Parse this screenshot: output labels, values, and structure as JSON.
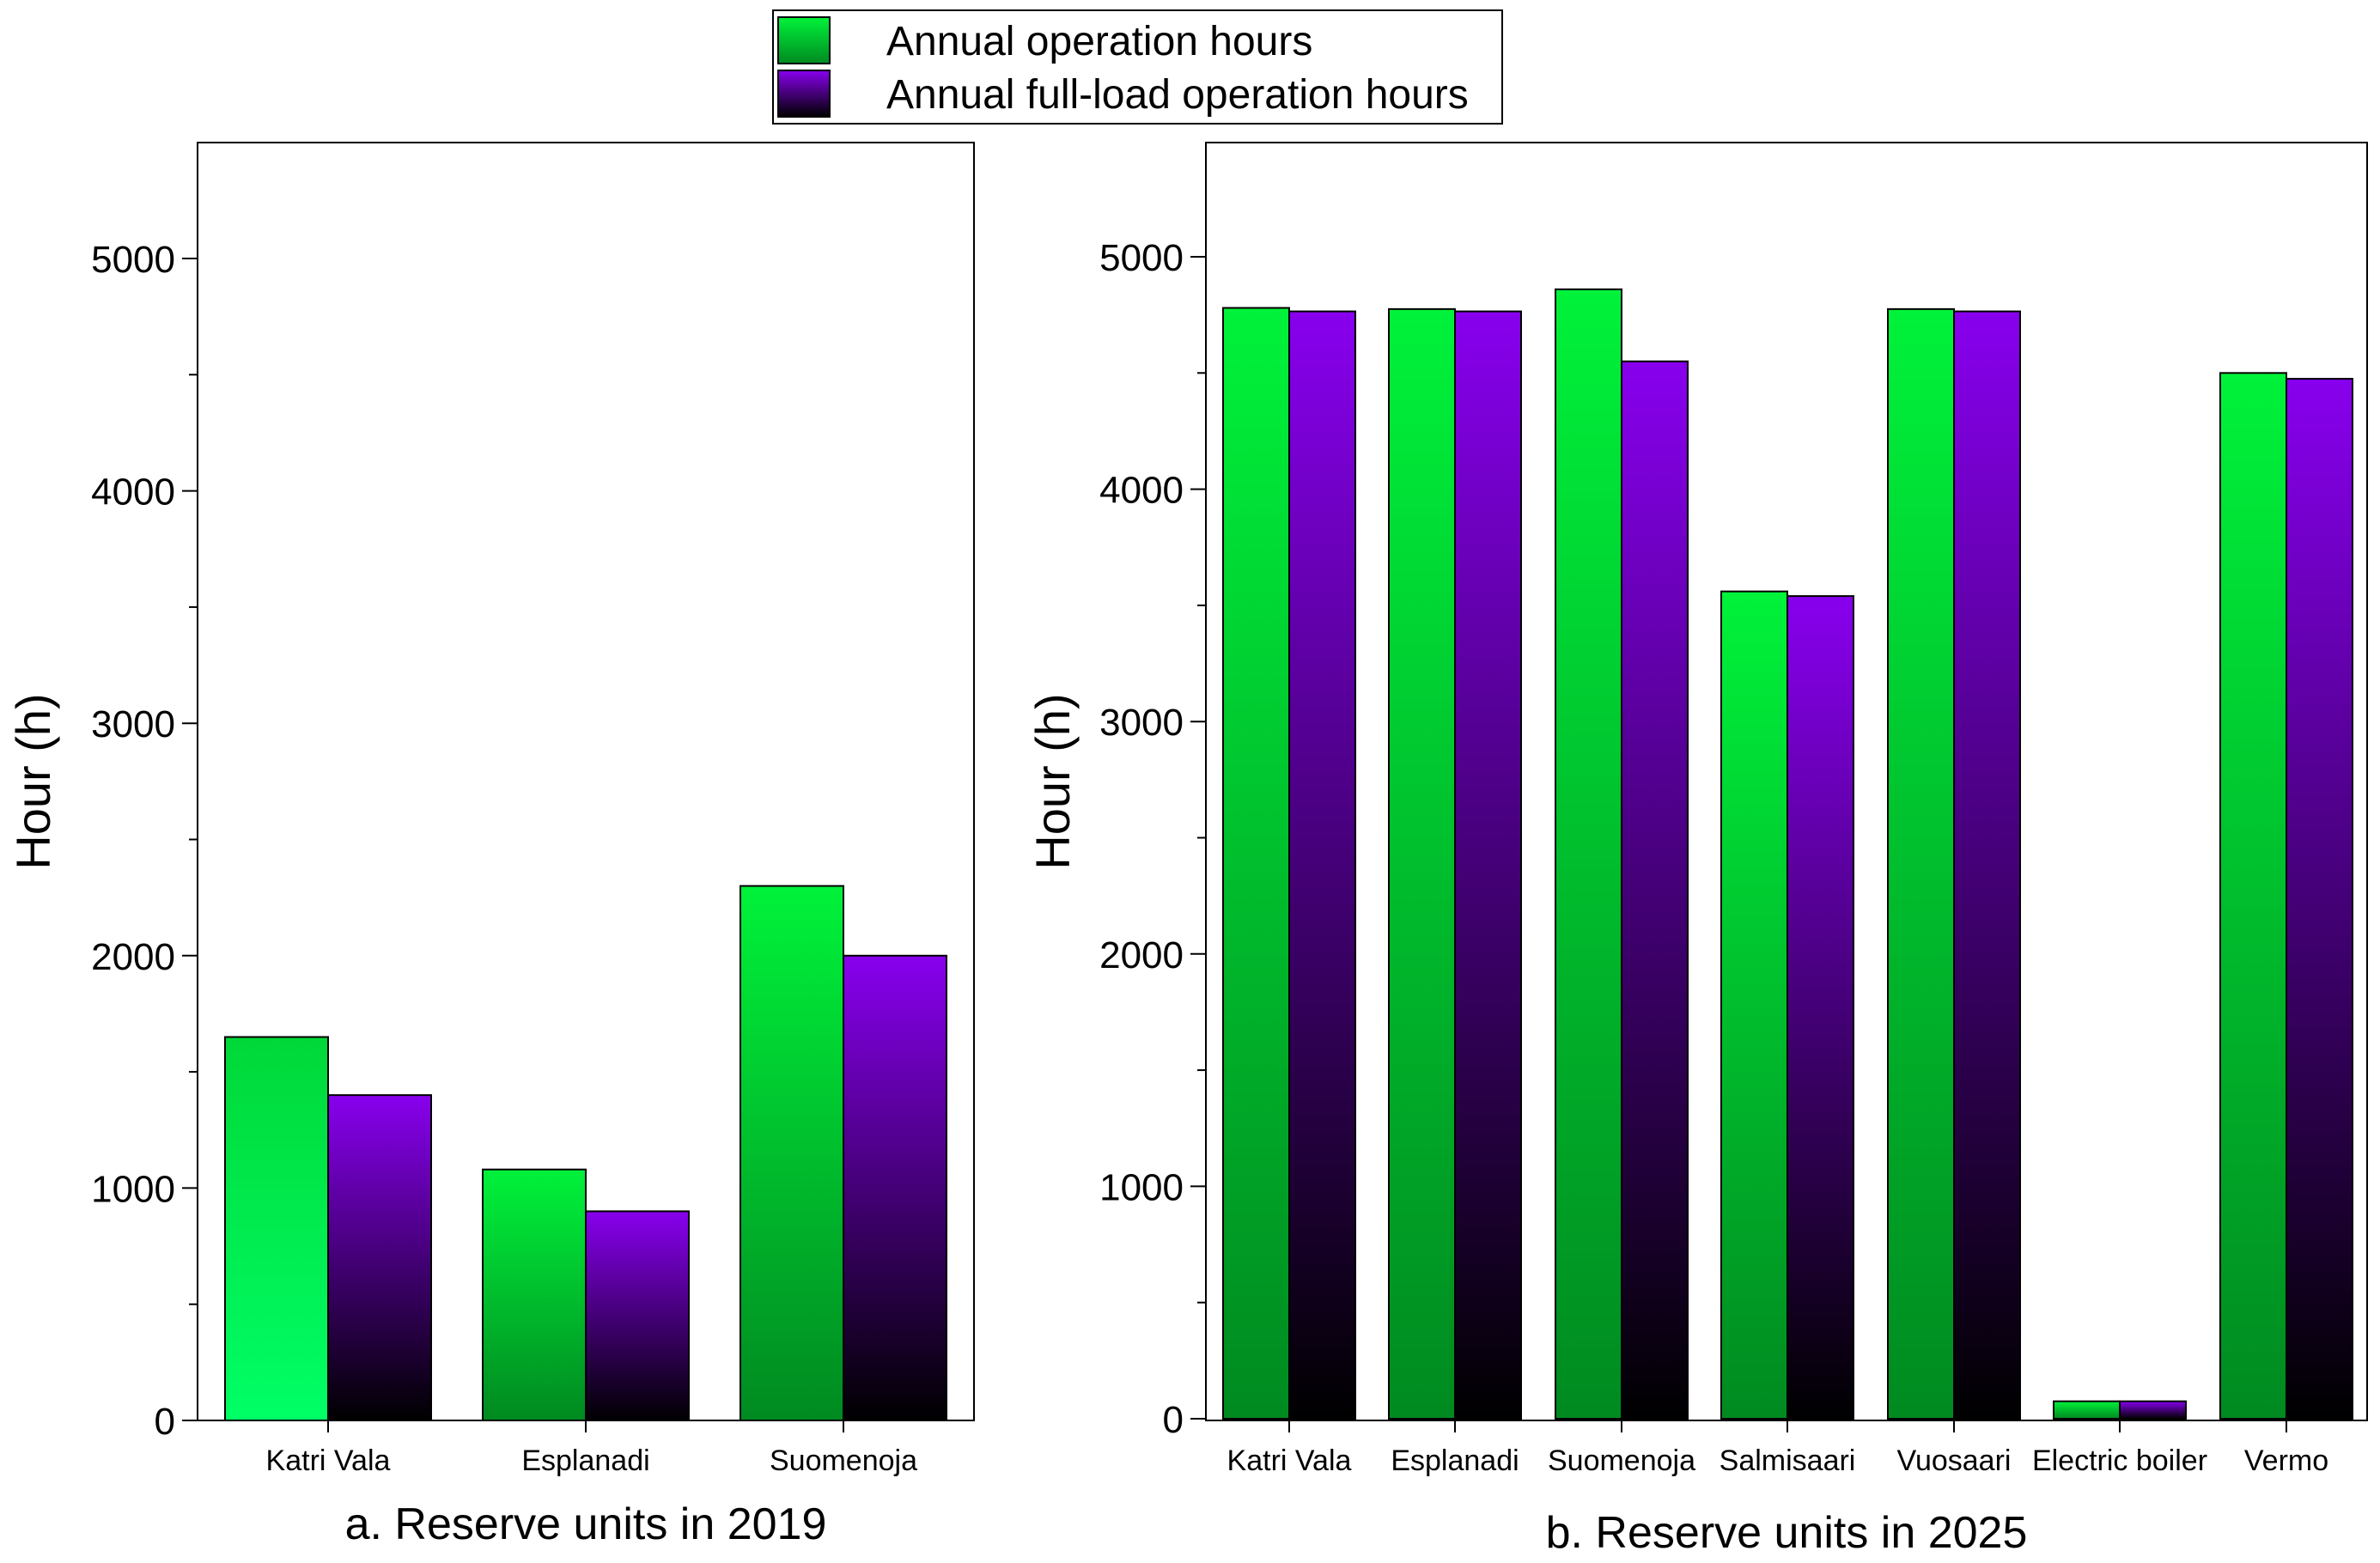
{
  "legend": {
    "items": [
      {
        "label": "Annual operation hours",
        "color": "#00e640"
      },
      {
        "label": "Annual full-load operation hours",
        "color": "#8000e8"
      }
    ]
  },
  "colors": {
    "operation_top": "#00f23a",
    "operation_bottom": "#008a20",
    "fullload_top": "#8800ee",
    "fullload_bottom": "#000000"
  },
  "chart_data": [
    {
      "type": "bar",
      "title": "a. Reserve units in 2019",
      "ylabel": "Hour (h)",
      "xlabel": "",
      "categories": [
        "Katri Vala",
        "Esplanadi",
        "Suomenoja"
      ],
      "series": [
        {
          "name": "Annual operation hours",
          "values": [
            1650,
            1080,
            2300
          ]
        },
        {
          "name": "Annual full-load operation hours",
          "values": [
            1400,
            900,
            2000
          ]
        }
      ],
      "ylim": [
        0,
        5500
      ],
      "yticks": [
        0,
        1000,
        2000,
        3000,
        4000,
        5000
      ],
      "grid": false,
      "legend": "top-center"
    },
    {
      "type": "bar",
      "title": "b. Reserve units in 2025",
      "ylabel": "Hour (h)",
      "xlabel": "",
      "categories": [
        "Katri Vala",
        "Esplanadi",
        "Suomenoja",
        "Salmisaari",
        "Vuosaari",
        "Electric boiler",
        "Vermo"
      ],
      "series": [
        {
          "name": "Annual operation hours",
          "values": [
            4780,
            4775,
            4860,
            3560,
            4775,
            75,
            4500
          ]
        },
        {
          "name": "Annual full-load operation hours",
          "values": [
            4765,
            4765,
            4550,
            3540,
            4765,
            75,
            4475
          ]
        }
      ],
      "ylim": [
        0,
        5500
      ],
      "yticks": [
        0,
        1000,
        2000,
        3000,
        4000,
        5000
      ],
      "grid": false,
      "legend": "top-center"
    }
  ]
}
